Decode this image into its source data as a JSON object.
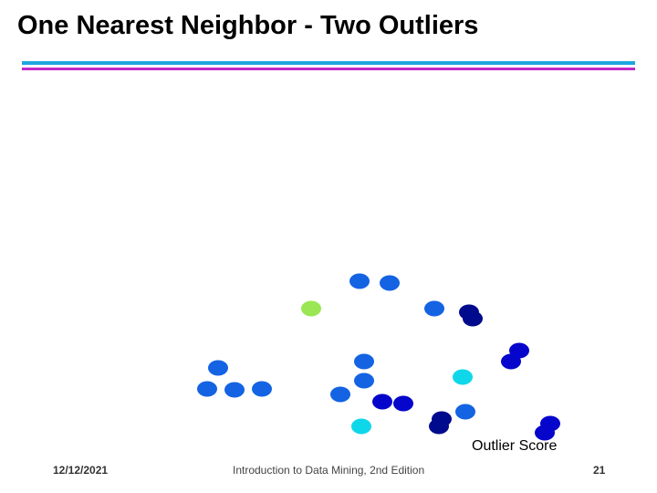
{
  "slide": {
    "title": "One Nearest Neighbor - Two Outliers",
    "rule_colors": [
      "#1ea6e0",
      "#c02ac8"
    ],
    "legend_label": "Outlier Score"
  },
  "footer": {
    "date": "12/12/2021",
    "course": "Introduction to Data Mining, 2nd Edition",
    "page": "21"
  },
  "chart_data": {
    "type": "scatter",
    "title": "",
    "xlabel": "",
    "ylabel": "",
    "color_legend": "Outlier Score",
    "palette": {
      "lowest": "#000a8c",
      "low": "#0505cc",
      "medium": "#1463e3",
      "high": "#0fd7ea",
      "highest": "#9ae654"
    }
  }
}
